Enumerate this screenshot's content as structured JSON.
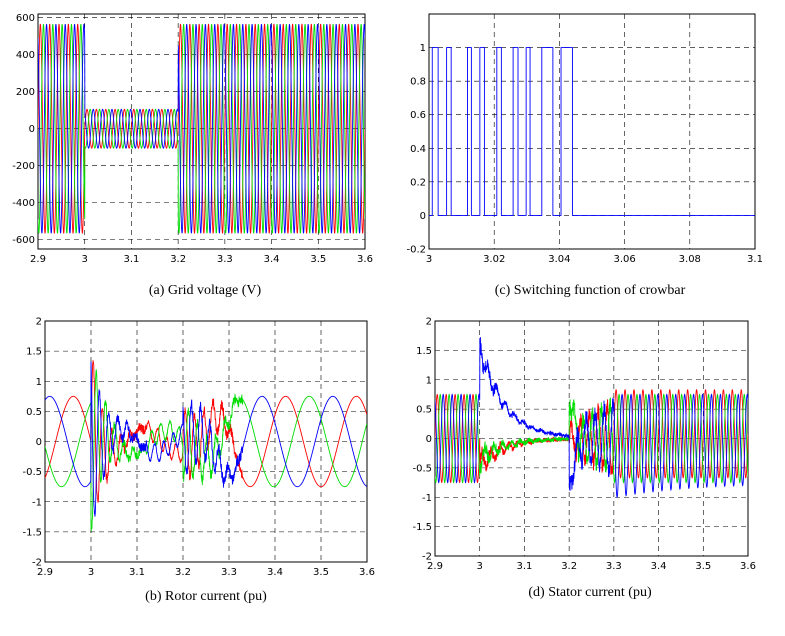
{
  "colors": {
    "phase_a": "#ff0000",
    "phase_b": "#00dd00",
    "phase_c": "#0000ff",
    "grid": "#000000"
  },
  "chart_data": [
    {
      "id": "a",
      "type": "line",
      "caption": "(a) Grid voltage (V)",
      "xlim": [
        2.9,
        3.6
      ],
      "ylim": [
        -650,
        620
      ],
      "xticks": [
        "2.9",
        "3",
        "3.1",
        "3.2",
        "3.3",
        "3.4",
        "3.5",
        "3.6"
      ],
      "yticks": [
        "600",
        "400",
        "200",
        "0",
        "-200",
        "-400",
        "-600"
      ],
      "grid": true,
      "series": [
        {
          "phase": "a",
          "color_key": "phase_a"
        },
        {
          "phase": "b",
          "color_key": "phase_b"
        },
        {
          "phase": "c",
          "color_key": "phase_c"
        }
      ],
      "waveform": {
        "frequency_hz": 50,
        "amplitude_normal": 565,
        "amplitude_sag": 105,
        "sag_start": 3.0,
        "sag_end": 3.2
      }
    },
    {
      "id": "c",
      "type": "line",
      "caption": "(c) Switching function of crowbar",
      "xlim": [
        3.0,
        3.1
      ],
      "ylim": [
        -0.2,
        1.2
      ],
      "xticks": [
        "3",
        "3.02",
        "3.04",
        "3.06",
        "3.08",
        "3.1"
      ],
      "yticks": [
        "1",
        "0.8",
        "0.6",
        "0.4",
        "0.2",
        "0",
        "-0.2"
      ],
      "grid": true,
      "series": [
        {
          "color_key": "phase_c",
          "on_intervals": [
            [
              3.001,
              3.0028
            ],
            [
              3.0054,
              3.0068
            ],
            [
              3.0118,
              3.013
            ],
            [
              3.0156,
              3.017
            ],
            [
              3.0208,
              3.0222
            ],
            [
              3.0258,
              3.0273
            ],
            [
              3.0298,
              3.031
            ],
            [
              3.0346,
              3.038
            ],
            [
              3.0405,
              3.044
            ]
          ]
        }
      ]
    },
    {
      "id": "b",
      "type": "line",
      "caption": "(b) Rotor current (pu)",
      "xlim": [
        2.9,
        3.6
      ],
      "ylim": [
        -2,
        2
      ],
      "xticks": [
        "2.9",
        "3",
        "3.1",
        "3.2",
        "3.3",
        "3.4",
        "3.5",
        "3.6"
      ],
      "yticks": [
        "2",
        "1.5",
        "1",
        "0.5",
        "0",
        "-0.5",
        "-1",
        "-1.5",
        "-2"
      ],
      "grid": true,
      "series": [
        {
          "phase": "a",
          "color_key": "phase_a"
        },
        {
          "phase": "b",
          "color_key": "phase_b"
        },
        {
          "phase": "c",
          "color_key": "phase_c"
        }
      ],
      "waveform": {
        "slip_frequency_hz": 6.5,
        "amplitude_normal": 0.75,
        "fault_peak": 1.55,
        "fault_start": 3.0
      }
    },
    {
      "id": "d",
      "type": "line",
      "caption": "(d) Stator current (pu)",
      "xlim": [
        2.9,
        3.6
      ],
      "ylim": [
        -2,
        2
      ],
      "xticks": [
        "2.9",
        "3",
        "3.1",
        "3.2",
        "3.3",
        "3.4",
        "3.5",
        "3.6"
      ],
      "yticks": [
        "2",
        "1.5",
        "1",
        "0.5",
        "0",
        "-0.5",
        "-1",
        "-1.5",
        "-2"
      ],
      "grid": true,
      "series": [
        {
          "phase": "a",
          "color_key": "phase_a"
        },
        {
          "phase": "b",
          "color_key": "phase_b"
        },
        {
          "phase": "c",
          "color_key": "phase_c"
        }
      ],
      "waveform": {
        "frequency_hz": 50,
        "amplitude_normal": 0.75,
        "fault_peak_blue": 1.6,
        "fault_start": 3.0,
        "clear_time": 3.2
      }
    }
  ]
}
